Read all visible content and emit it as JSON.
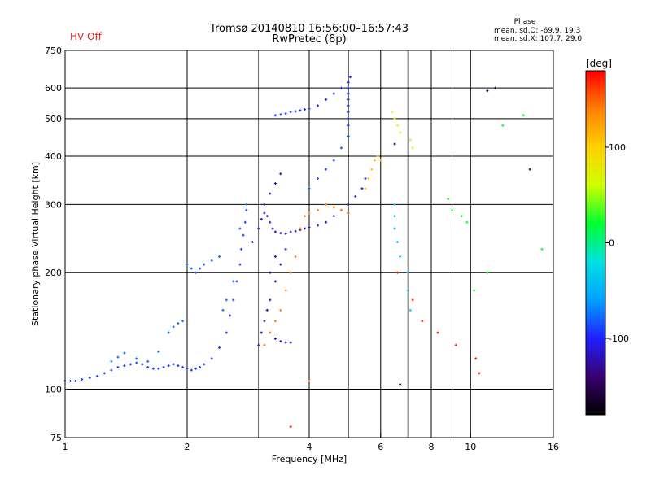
{
  "header": {
    "hv_status": "HV Off",
    "title_line1": "Tromsø 20140810 16:56:00–16:57:43",
    "title_line2": "RwPretec (8p)",
    "phase_title": "Phase",
    "phase_o": "mean, sd,O: -69.9, 19.3",
    "phase_x": "mean, sd,X: 107.7, 29.0"
  },
  "colors": {
    "grid": "#000000",
    "scale_stops": [
      "#000000",
      "#3a0070",
      "#2020ff",
      "#00a0ff",
      "#00e0e0",
      "#00ff30",
      "#d0ff00",
      "#ffd000",
      "#ff8000",
      "#ff0000"
    ]
  },
  "chart_data": {
    "type": "scatter",
    "title": "Tromsø 20140810 16:56:00–16:57:43",
    "subtitle": "RwPretec (8p)",
    "xlabel": "Frequency [MHz]",
    "ylabel": "Stationary phase Virtual Height [km]",
    "xscale": "log",
    "yscale": "log",
    "xlim": [
      1,
      16
    ],
    "ylim": [
      75,
      750
    ],
    "xticks": [
      1,
      2,
      4,
      6,
      8,
      10,
      16
    ],
    "xtick_labels": [
      "1",
      "2",
      "4",
      "6",
      "8",
      "10",
      "16"
    ],
    "yticks": [
      75,
      100,
      200,
      300,
      400,
      500,
      600,
      750
    ],
    "ytick_labels": [
      "75",
      "100",
      "200",
      "300",
      "400",
      "500",
      "600",
      "750"
    ],
    "grid": true,
    "colorbar": {
      "label": "[deg]",
      "range": [
        -180,
        180
      ],
      "ticks": [
        -100,
        0,
        100
      ],
      "tick_labels": [
        "-100",
        "0",
        "100"
      ]
    },
    "series": [
      {
        "phase": -90,
        "points": [
          [
            1.0,
            105
          ],
          [
            1.03,
            105
          ],
          [
            1.06,
            105
          ],
          [
            1.1,
            106
          ],
          [
            1.15,
            107
          ],
          [
            1.2,
            108
          ],
          [
            1.25,
            110
          ],
          [
            1.3,
            112
          ],
          [
            1.35,
            114
          ],
          [
            1.4,
            115
          ],
          [
            1.45,
            116
          ],
          [
            1.5,
            117
          ],
          [
            1.55,
            116
          ],
          [
            1.6,
            114
          ],
          [
            1.65,
            113
          ],
          [
            1.7,
            113
          ],
          [
            1.75,
            114
          ],
          [
            1.8,
            115
          ],
          [
            1.85,
            116
          ],
          [
            1.9,
            115
          ],
          [
            1.95,
            114
          ],
          [
            2.0,
            113
          ],
          [
            2.05,
            112
          ],
          [
            2.1,
            113
          ],
          [
            2.15,
            114
          ],
          [
            2.2,
            116
          ],
          [
            2.3,
            120
          ],
          [
            2.4,
            128
          ],
          [
            2.5,
            140
          ],
          [
            2.55,
            155
          ],
          [
            2.6,
            170
          ],
          [
            2.65,
            190
          ],
          [
            2.7,
            210
          ],
          [
            2.72,
            230
          ],
          [
            2.75,
            250
          ],
          [
            2.78,
            270
          ],
          [
            2.8,
            290
          ]
        ]
      },
      {
        "phase": -75,
        "points": [
          [
            1.3,
            118
          ],
          [
            1.35,
            121
          ],
          [
            1.4,
            124
          ],
          [
            1.5,
            120
          ],
          [
            1.6,
            118
          ],
          [
            1.7,
            125
          ],
          [
            1.8,
            140
          ],
          [
            1.85,
            145
          ],
          [
            1.9,
            148
          ],
          [
            1.95,
            150
          ],
          [
            2.0,
            210
          ],
          [
            2.05,
            205
          ],
          [
            2.1,
            200
          ],
          [
            2.15,
            205
          ],
          [
            2.2,
            210
          ],
          [
            2.3,
            215
          ],
          [
            2.4,
            220
          ],
          [
            2.45,
            160
          ],
          [
            2.5,
            170
          ],
          [
            2.6,
            190
          ],
          [
            2.7,
            260
          ],
          [
            2.8,
            300
          ]
        ]
      },
      {
        "phase": -110,
        "points": [
          [
            2.9,
            240
          ],
          [
            3.0,
            260
          ],
          [
            3.05,
            275
          ],
          [
            3.1,
            285
          ],
          [
            3.15,
            280
          ],
          [
            3.2,
            270
          ],
          [
            3.25,
            260
          ],
          [
            3.3,
            255
          ],
          [
            3.4,
            253
          ],
          [
            3.5,
            252
          ],
          [
            3.6,
            255
          ],
          [
            3.7,
            256
          ],
          [
            3.8,
            258
          ],
          [
            3.9,
            260
          ],
          [
            4.0,
            262
          ],
          [
            4.2,
            265
          ],
          [
            4.4,
            270
          ],
          [
            4.6,
            280
          ],
          [
            4.8,
            290
          ],
          [
            5.0,
            300
          ],
          [
            5.2,
            315
          ],
          [
            5.4,
            330
          ],
          [
            5.5,
            350
          ]
        ]
      },
      {
        "phase": -95,
        "points": [
          [
            3.3,
            510
          ],
          [
            3.4,
            512
          ],
          [
            3.5,
            515
          ],
          [
            3.6,
            520
          ],
          [
            3.7,
            522
          ],
          [
            3.8,
            525
          ],
          [
            3.9,
            528
          ],
          [
            4.0,
            530
          ],
          [
            4.2,
            540
          ],
          [
            4.4,
            560
          ],
          [
            4.6,
            580
          ],
          [
            4.8,
            600
          ],
          [
            5.0,
            620
          ],
          [
            5.05,
            640
          ]
        ]
      },
      {
        "phase": -120,
        "points": [
          [
            3.0,
            130
          ],
          [
            3.05,
            140
          ],
          [
            3.1,
            150
          ],
          [
            3.15,
            160
          ],
          [
            3.2,
            170
          ],
          [
            3.3,
            190
          ],
          [
            3.4,
            210
          ],
          [
            3.5,
            230
          ],
          [
            3.3,
            135
          ],
          [
            3.4,
            133
          ],
          [
            3.5,
            132
          ],
          [
            3.6,
            132
          ],
          [
            3.1,
            300
          ],
          [
            3.2,
            320
          ],
          [
            3.3,
            340
          ],
          [
            3.4,
            360
          ],
          [
            3.3,
            220
          ],
          [
            3.2,
            200
          ]
        ]
      },
      {
        "phase": -85,
        "points": [
          [
            4.0,
            330
          ],
          [
            4.2,
            350
          ],
          [
            4.4,
            370
          ],
          [
            4.6,
            390
          ],
          [
            4.8,
            420
          ],
          [
            5.0,
            450
          ],
          [
            5.0,
            480
          ],
          [
            5.0,
            500
          ],
          [
            5.0,
            520
          ],
          [
            5.0,
            540
          ],
          [
            5.0,
            560
          ],
          [
            5.0,
            580
          ],
          [
            5.0,
            600
          ]
        ]
      },
      {
        "phase": 140,
        "points": [
          [
            3.1,
            130
          ],
          [
            3.2,
            140
          ],
          [
            3.3,
            150
          ],
          [
            3.4,
            160
          ],
          [
            3.5,
            180
          ],
          [
            3.6,
            200
          ],
          [
            3.7,
            220
          ],
          [
            3.8,
            260
          ],
          [
            3.9,
            280
          ],
          [
            4.0,
            285
          ],
          [
            4.2,
            290
          ],
          [
            4.4,
            300
          ],
          [
            4.6,
            295
          ],
          [
            4.8,
            290
          ],
          [
            5.0,
            285
          ]
        ]
      },
      {
        "phase": 110,
        "points": [
          [
            5.5,
            330
          ],
          [
            5.6,
            350
          ],
          [
            5.7,
            370
          ],
          [
            5.8,
            390
          ],
          [
            5.9,
            400
          ],
          [
            6.0,
            390
          ]
        ]
      },
      {
        "phase": 60,
        "points": [
          [
            6.4,
            520
          ],
          [
            6.5,
            500
          ],
          [
            6.6,
            480
          ],
          [
            6.7,
            460
          ],
          [
            7.1,
            440
          ],
          [
            7.2,
            420
          ]
        ]
      },
      {
        "phase": -40,
        "points": [
          [
            6.5,
            300
          ],
          [
            6.5,
            280
          ],
          [
            6.5,
            260
          ],
          [
            6.6,
            240
          ],
          [
            6.7,
            220
          ],
          [
            7.0,
            200
          ],
          [
            7.0,
            180
          ],
          [
            7.1,
            160
          ]
        ]
      },
      {
        "phase": 170,
        "points": [
          [
            6.6,
            200
          ],
          [
            7.2,
            170
          ],
          [
            7.6,
            150
          ],
          [
            8.3,
            140
          ],
          [
            9.2,
            130
          ],
          [
            10.3,
            120
          ],
          [
            10.5,
            110
          ],
          [
            4.0,
            105
          ],
          [
            3.6,
            80
          ]
        ]
      },
      {
        "phase": -150,
        "points": [
          [
            6.5,
            430
          ],
          [
            6.7,
            103
          ],
          [
            11.0,
            590
          ],
          [
            11.5,
            600
          ],
          [
            14.0,
            370
          ]
        ]
      },
      {
        "phase": 20,
        "points": [
          [
            8.8,
            310
          ],
          [
            9.0,
            290
          ],
          [
            9.5,
            280
          ],
          [
            9.8,
            270
          ],
          [
            10.2,
            180
          ],
          [
            11.0,
            200
          ],
          [
            12.0,
            480
          ],
          [
            13.5,
            510
          ],
          [
            15.0,
            230
          ]
        ]
      }
    ]
  }
}
